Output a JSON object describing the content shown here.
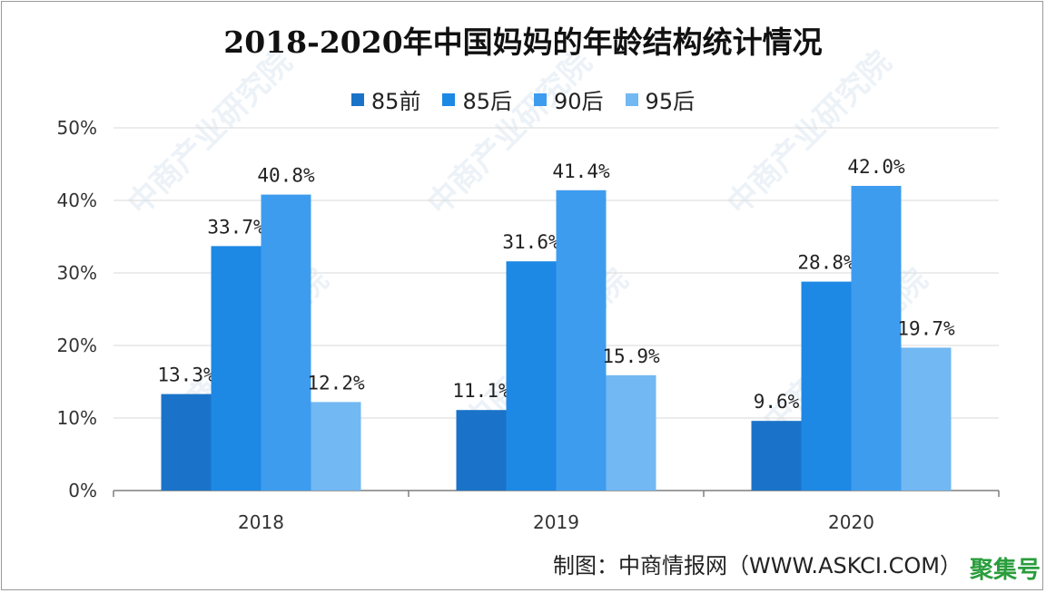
{
  "title": "2018-2020年中国妈妈的年龄结构统计情况",
  "source": "制图：中商情报网（WWW.ASKCI.COM）",
  "stamp": "聚集号",
  "watermark": "中商产业研究院",
  "colors": {
    "series": [
      "#1a73c8",
      "#1e88e5",
      "#3e9cef",
      "#72b8f2"
    ],
    "gridline": "#d9d9d9",
    "axis": "#7f7f7f"
  },
  "chart_data": {
    "type": "bar",
    "title": "2018-2020年中国妈妈的年龄结构统计情况",
    "categories": [
      "2018",
      "2019",
      "2020"
    ],
    "series": [
      {
        "name": "85前",
        "values": [
          13.3,
          11.1,
          9.6
        ]
      },
      {
        "name": "85后",
        "values": [
          33.7,
          31.6,
          28.8
        ]
      },
      {
        "name": "90后",
        "values": [
          40.8,
          41.4,
          42.0
        ]
      },
      {
        "name": "95后",
        "values": [
          12.2,
          15.9,
          19.7
        ]
      }
    ],
    "data_labels": [
      [
        "13.3%",
        "11.1%",
        "9.6%"
      ],
      [
        "33.7%",
        "31.6%",
        "28.8%"
      ],
      [
        "40.8%",
        "41.4%",
        "42.0%"
      ],
      [
        "12.2%",
        "15.9%",
        "19.7%"
      ]
    ],
    "ylim": [
      0,
      50
    ],
    "yticks": [
      "0%",
      "10%",
      "20%",
      "30%",
      "40%",
      "50%"
    ],
    "grid": true,
    "legend": "top-center"
  }
}
